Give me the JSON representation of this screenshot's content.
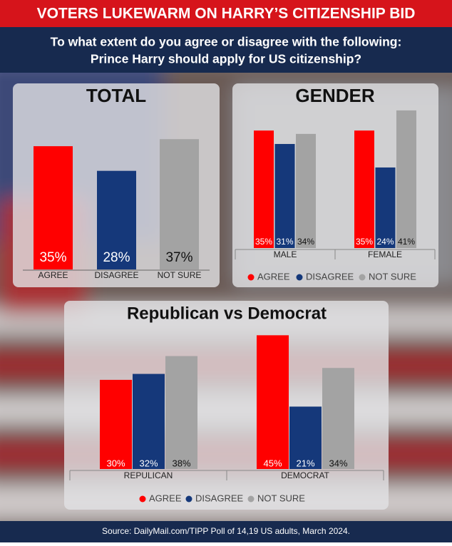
{
  "header": {
    "title": "VOTERS LUKEWARM ON HARRY’S CITIZENSHIP BID",
    "question": [
      "To what extent do you agree or disagree with the following:",
      "Prince Harry should apply for US citizenship?"
    ]
  },
  "chart_data": [
    {
      "type": "bar",
      "title": "TOTAL",
      "categories": [
        "AGREE",
        "DISAGREE",
        "NOT SURE"
      ],
      "values": [
        35,
        28,
        37
      ],
      "value_labels": [
        "35%",
        "28%",
        "37%"
      ],
      "colors": [
        "#ff0000",
        "#15387a",
        "#a3a3a3"
      ]
    },
    {
      "type": "grouped_bar",
      "title": "GENDER",
      "categories": [
        "MALE",
        "FEMALE"
      ],
      "series": [
        {
          "name": "AGREE",
          "color": "#ff0000",
          "values": [
            35,
            35
          ],
          "value_labels": [
            "35%",
            "35%"
          ]
        },
        {
          "name": "DISAGREE",
          "color": "#15387a",
          "values": [
            31,
            24
          ],
          "value_labels": [
            "31%",
            "24%"
          ]
        },
        {
          "name": "NOT SURE",
          "color": "#a3a3a3",
          "values": [
            34,
            41
          ],
          "value_labels": [
            "34%",
            "41%"
          ]
        }
      ]
    },
    {
      "type": "grouped_bar",
      "title": "Republican vs Democrat",
      "categories": [
        "REPULICAN",
        "DEMOCRAT"
      ],
      "series": [
        {
          "name": "AGREE",
          "color": "#ff0000",
          "values": [
            30,
            45
          ],
          "value_labels": [
            "30%",
            "45%"
          ]
        },
        {
          "name": "DISAGREE",
          "color": "#15387a",
          "values": [
            32,
            21
          ],
          "value_labels": [
            "32%",
            "21%"
          ]
        },
        {
          "name": "NOT SURE",
          "color": "#a3a3a3",
          "values": [
            38,
            34
          ],
          "value_labels": [
            "38%",
            "34%"
          ]
        }
      ]
    }
  ],
  "source": "Source: DailyMail.com/TIPP Poll of  14,19 US adults, March 2024."
}
